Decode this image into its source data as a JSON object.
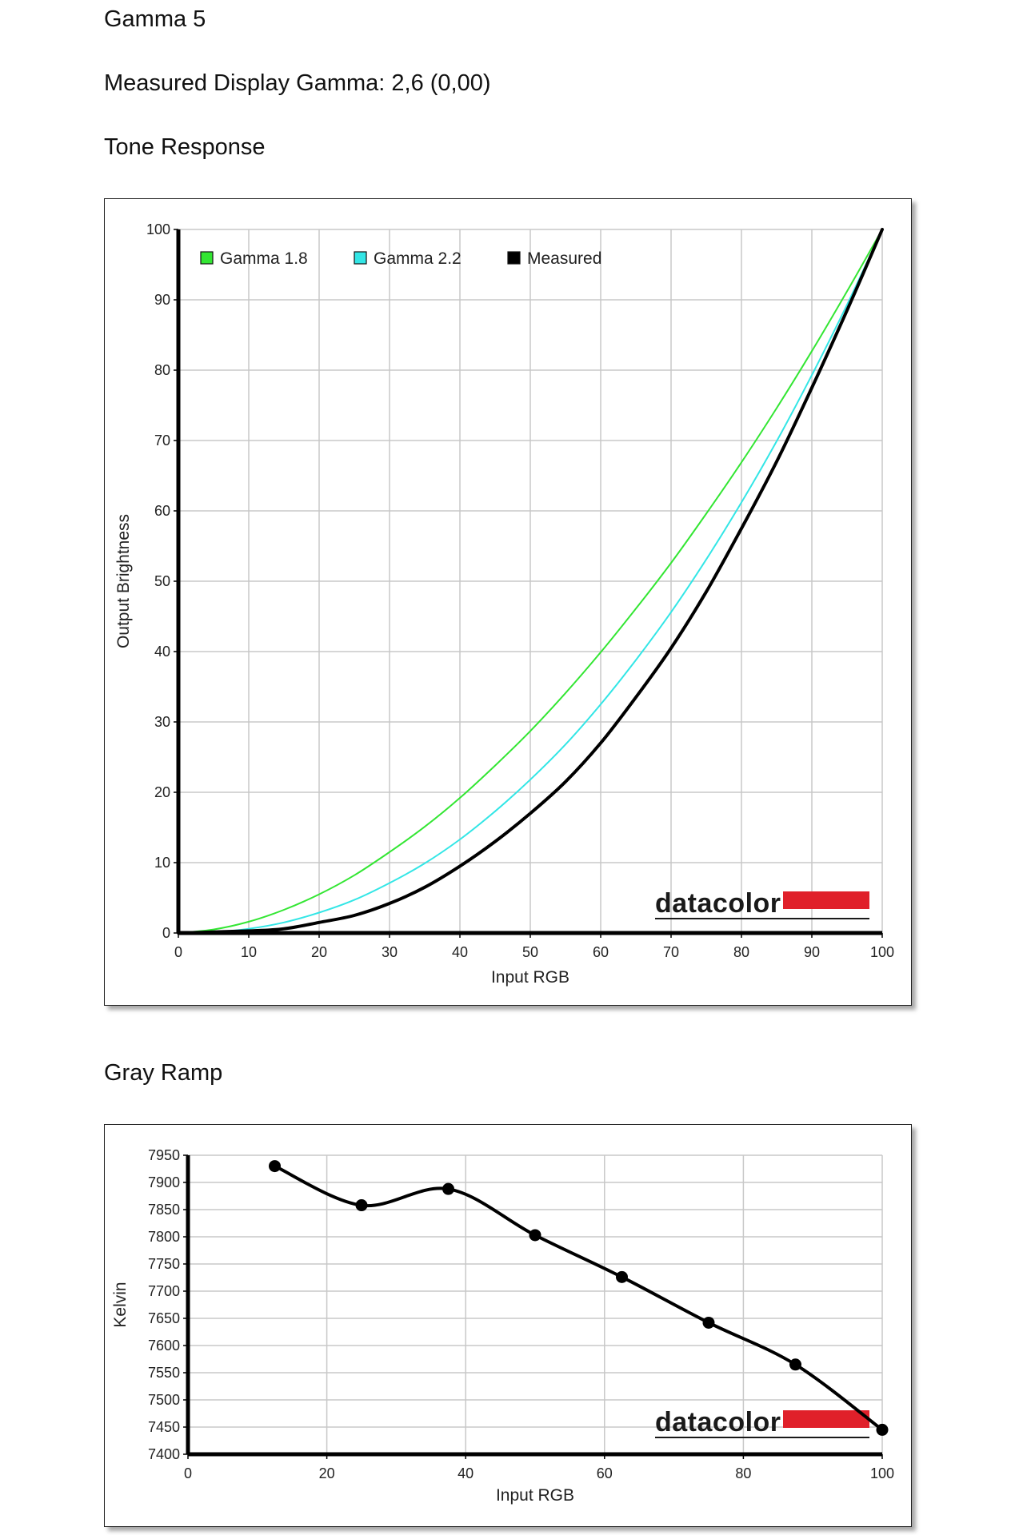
{
  "headings": {
    "title": "Gamma 5",
    "measured": "Measured Display Gamma: 2,6 (0,00)",
    "tone_response": "Tone Response",
    "gray_ramp": "Gray Ramp"
  },
  "logo": {
    "text": "datacolor",
    "bar_color": "#e0202a"
  },
  "chart_data": [
    {
      "type": "line",
      "title": "Tone Response",
      "xlabel": "Input RGB",
      "ylabel": "Output Brightness",
      "xlim": [
        0,
        100
      ],
      "ylim": [
        0,
        100
      ],
      "xticks": [
        "0",
        "10",
        "20",
        "30",
        "40",
        "50",
        "60",
        "70",
        "80",
        "90",
        "100"
      ],
      "yticks": [
        "0",
        "10",
        "20",
        "30",
        "40",
        "50",
        "60",
        "70",
        "80",
        "90",
        "100"
      ],
      "grid": true,
      "legend_position": "top-left",
      "series": [
        {
          "name": "Gamma 1.8",
          "color": "#33e633",
          "gamma": 1.8,
          "x": [
            0,
            5,
            10,
            15,
            20,
            25,
            30,
            35,
            40,
            45,
            50,
            55,
            60,
            65,
            70,
            75,
            80,
            85,
            90,
            95,
            100
          ],
          "y": [
            0,
            0.5,
            1.6,
            3.3,
            5.5,
            8.2,
            11.5,
            15.1,
            19.2,
            23.8,
            28.7,
            34.1,
            39.9,
            46.1,
            52.6,
            59.6,
            66.9,
            74.6,
            82.7,
            91.2,
            100
          ]
        },
        {
          "name": "Gamma 2.2",
          "color": "#33e6e6",
          "gamma": 2.2,
          "x": [
            0,
            5,
            10,
            15,
            20,
            25,
            30,
            35,
            40,
            45,
            50,
            55,
            60,
            65,
            70,
            75,
            80,
            85,
            90,
            95,
            100
          ],
          "y": [
            0,
            0.1,
            0.6,
            1.5,
            2.9,
            4.7,
            7.1,
            9.9,
            13.3,
            17.3,
            21.8,
            26.8,
            32.5,
            38.8,
            45.6,
            53.1,
            61.2,
            69.9,
            79.3,
            89.3,
            100
          ]
        },
        {
          "name": "Measured",
          "color": "#000000",
          "line_width": 4,
          "x": [
            0,
            10,
            15,
            20,
            25,
            30,
            35,
            40,
            45,
            50,
            55,
            60,
            65,
            70,
            75,
            80,
            85,
            90,
            95,
            100
          ],
          "y": [
            0,
            0.3,
            0.6,
            1.5,
            2.5,
            4.2,
            6.5,
            9.5,
            13.0,
            17.0,
            21.5,
            27.0,
            33.5,
            40.5,
            48.5,
            57.5,
            67.0,
            77.5,
            88.5,
            100
          ]
        }
      ]
    },
    {
      "type": "line",
      "title": "Gray Ramp",
      "xlabel": "Input RGB",
      "ylabel": "Kelvin",
      "xlim": [
        0,
        100
      ],
      "ylim": [
        7400,
        7950
      ],
      "xticks": [
        "0",
        "20",
        "40",
        "60",
        "80",
        "100"
      ],
      "yticks": [
        "7400",
        "7450",
        "7500",
        "7550",
        "7600",
        "7650",
        "7700",
        "7750",
        "7800",
        "7850",
        "7900",
        "7950"
      ],
      "grid": true,
      "series": [
        {
          "color": "#000000",
          "line_width": 4,
          "markers": true,
          "x": [
            12.5,
            25,
            37.5,
            50,
            62.5,
            75,
            87.5,
            100
          ],
          "y": [
            7930,
            7858,
            7888,
            7803,
            7726,
            7642,
            7565,
            7445
          ]
        }
      ]
    }
  ]
}
